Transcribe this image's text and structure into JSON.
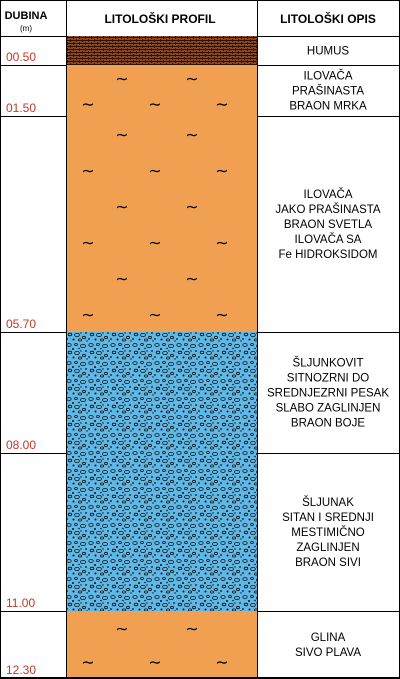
{
  "header": {
    "depth_title": "DUBINA",
    "depth_unit": "(m)",
    "profile_title": "LITOLOŠKI PROFIL",
    "description_title": "LITOLOŠKI OPIS"
  },
  "layers": [
    {
      "depth": "00.50",
      "material": "humus",
      "color": "#8b4a22",
      "description": [
        "HUMUS"
      ]
    },
    {
      "depth": "01.50",
      "material": "silty-clay",
      "color": "#f0a050",
      "description": [
        "ILOVAČA",
        "PRAŠINASTA",
        "BRAON MRKA"
      ]
    },
    {
      "depth": "05.70",
      "material": "silty-clay",
      "color": "#f0a050",
      "description": [
        "ILOVAČA",
        "JAKO PRAŠINASTA",
        "BRAON  SVETLA",
        "ILOVAČA SA",
        "Fe HIDROKSIDOM"
      ]
    },
    {
      "depth": "08.00",
      "material": "gravel",
      "color": "#5fb8e6",
      "description": [
        "ŠLJUNKOVIT",
        "SITNOZRNI DO",
        "SREDNJEZRNI PESAK",
        "SLABO ZAGLINJEN",
        "BRAON BOJE"
      ]
    },
    {
      "depth": "11.00",
      "material": "gravel",
      "color": "#5fb8e6",
      "description": [
        "ŠLJUNAK",
        "SITAN I SREDNJI",
        "MESTIMIČNO",
        "ZAGLINJEN",
        "BRAON SIVI"
      ]
    },
    {
      "depth": "12.30",
      "material": "clay",
      "color": "#f0a050",
      "description": [
        "GLINA",
        "SIVO PLAVA"
      ]
    }
  ]
}
